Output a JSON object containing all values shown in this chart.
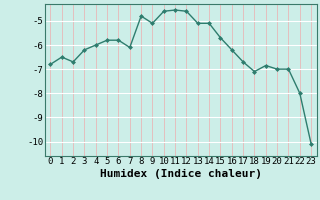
{
  "x": [
    0,
    1,
    2,
    3,
    4,
    5,
    6,
    7,
    8,
    9,
    10,
    11,
    12,
    13,
    14,
    15,
    16,
    17,
    18,
    19,
    20,
    21,
    22,
    23
  ],
  "y": [
    -6.8,
    -6.5,
    -6.7,
    -6.2,
    -6.0,
    -5.8,
    -5.8,
    -6.1,
    -4.8,
    -5.1,
    -4.6,
    -4.55,
    -4.6,
    -5.1,
    -5.1,
    -5.7,
    -6.2,
    -6.7,
    -7.1,
    -6.85,
    -7.0,
    -7.0,
    -8.0,
    -10.1
  ],
  "line_color": "#2e7d6e",
  "marker": "D",
  "marker_size": 2.0,
  "line_width": 1.0,
  "xlabel": "Humidex (Indice chaleur)",
  "xlim": [
    -0.5,
    23.5
  ],
  "ylim": [
    -10.6,
    -4.3
  ],
  "yticks": [
    -10,
    -9,
    -8,
    -7,
    -6,
    -5
  ],
  "xticks": [
    0,
    1,
    2,
    3,
    4,
    5,
    6,
    7,
    8,
    9,
    10,
    11,
    12,
    13,
    14,
    15,
    16,
    17,
    18,
    19,
    20,
    21,
    22,
    23
  ],
  "bg_color": "#cceee8",
  "grid_color": "#ffffff",
  "tick_label_fontsize": 6.5,
  "xlabel_fontsize": 8,
  "spine_color": "#3a7a6a"
}
